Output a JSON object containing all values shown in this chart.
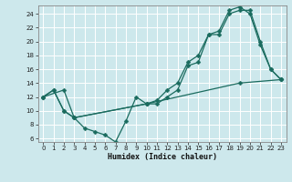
{
  "xlabel": "Humidex (Indice chaleur)",
  "bg_color": "#cde8ec",
  "line_color": "#1a6b5e",
  "grid_color": "#ffffff",
  "xlim": [
    -0.5,
    23.5
  ],
  "ylim": [
    5.5,
    25.2
  ],
  "xticks": [
    0,
    1,
    2,
    3,
    4,
    5,
    6,
    7,
    8,
    9,
    10,
    11,
    12,
    13,
    14,
    15,
    16,
    17,
    18,
    19,
    20,
    21,
    22,
    23
  ],
  "yticks": [
    6,
    8,
    10,
    12,
    14,
    16,
    18,
    20,
    22,
    24
  ],
  "line1_x": [
    0,
    1,
    2,
    3,
    4,
    5,
    6,
    7,
    8,
    9,
    10,
    11,
    12,
    13,
    14,
    15,
    16,
    17,
    18,
    19,
    20,
    21,
    22,
    23
  ],
  "line1_y": [
    12,
    13,
    10,
    9,
    7.5,
    7,
    6.5,
    5.5,
    8.5,
    12,
    11,
    11,
    12,
    13,
    16.5,
    17,
    21,
    21,
    24,
    24.5,
    24.5,
    20,
    16,
    14.5
  ],
  "line2_x": [
    0,
    1,
    2,
    3,
    10,
    11,
    12,
    13,
    14,
    15,
    16,
    17,
    18,
    19,
    20,
    21,
    22,
    23
  ],
  "line2_y": [
    12,
    13,
    10,
    9,
    11,
    11.5,
    13,
    14,
    17,
    18,
    21,
    21.5,
    24.5,
    25,
    24,
    19.5,
    16,
    14.5
  ],
  "line3_x": [
    0,
    2,
    3,
    10,
    19,
    23
  ],
  "line3_y": [
    12,
    13,
    9,
    11,
    14,
    14.5
  ]
}
